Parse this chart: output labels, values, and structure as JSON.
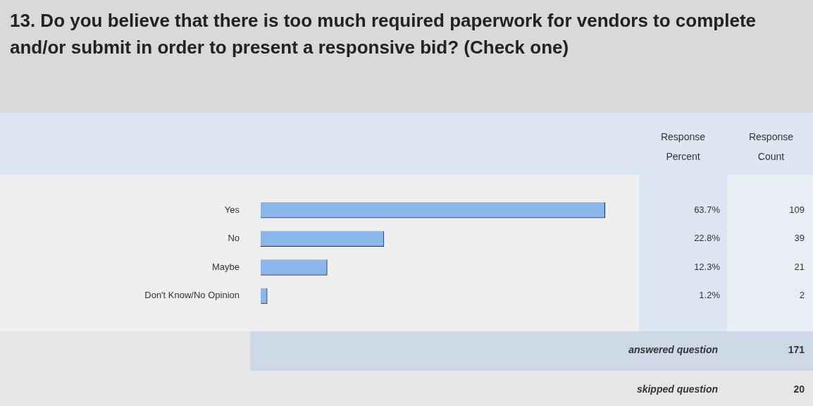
{
  "chart_data": {
    "type": "bar",
    "orientation": "horizontal",
    "title": "13. Do you believe that there is too much required paperwork for vendors to complete and/or submit in order to present a responsive bid? (Check one)",
    "categories": [
      "Yes",
      "No",
      "Maybe",
      "Don't Know/No Opinion"
    ],
    "values": [
      63.7,
      22.8,
      12.3,
      1.2
    ],
    "value_labels": [
      "63.7%",
      "22.8%",
      "12.3%",
      "1.2%"
    ],
    "color": "#8ab6ea",
    "tick_labels": "y",
    "legend": false,
    "annotations": [
      "Response Percent",
      "Response Count",
      "109",
      "39",
      "21",
      "2",
      "answered question",
      "171",
      "skipped question",
      "20"
    ]
  }
}
